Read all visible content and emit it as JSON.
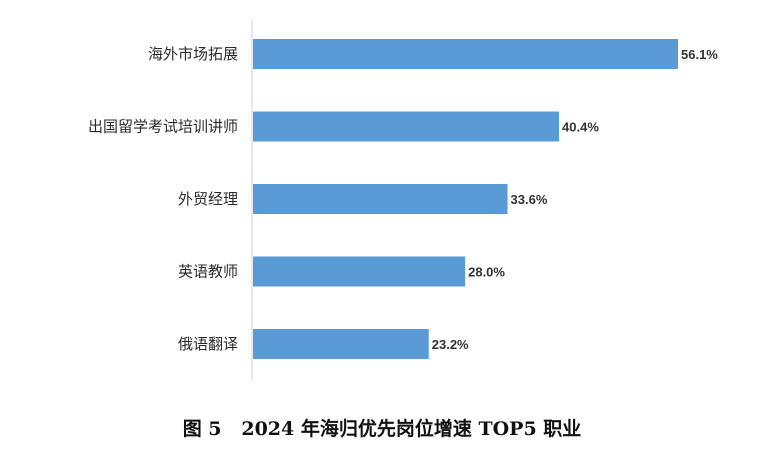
{
  "caption": "图 5   2024 年海归优先岗位增速 TOP5 职业",
  "chart_data": {
    "type": "bar",
    "orientation": "horizontal",
    "title": "",
    "categories": [
      "海外市场拓展",
      "出国留学考试培训讲师",
      "外贸经理",
      "英语教师",
      "俄语翻译"
    ],
    "values": [
      56.1,
      40.4,
      33.6,
      28.0,
      23.2
    ],
    "value_labels": [
      "56.1%",
      "40.4%",
      "33.6%",
      "28.0%",
      "23.2%"
    ],
    "unit": "%",
    "xlim": [
      0,
      56.1
    ],
    "grid": false,
    "legend": false,
    "bar_color": "#5b9bd5",
    "axis_color": "#d0d0d0"
  }
}
